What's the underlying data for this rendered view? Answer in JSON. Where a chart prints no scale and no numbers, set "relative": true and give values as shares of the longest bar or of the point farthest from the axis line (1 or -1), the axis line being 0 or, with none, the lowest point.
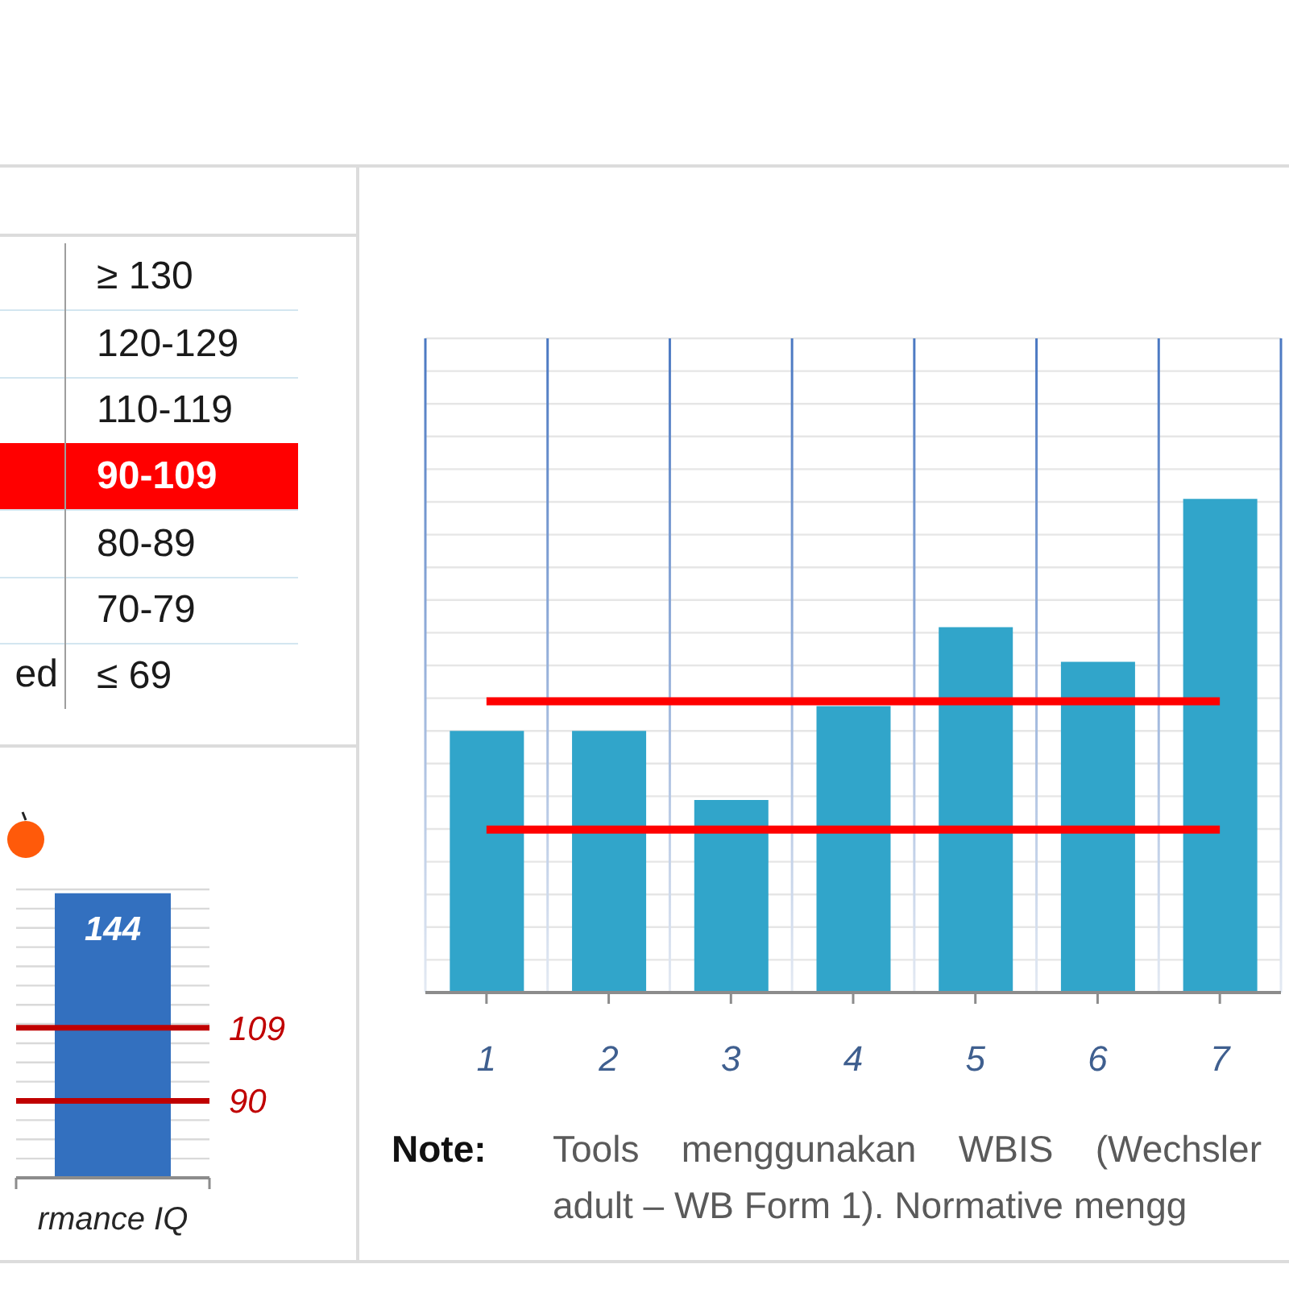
{
  "chart_data": [
    {
      "type": "other",
      "categories": [
        "≥ 130",
        "120-129",
        "110-119",
        "90-109",
        "80-89",
        "70-79",
        "≤ 69"
      ],
      "colors": [
        "#ffffff",
        "#ffffff",
        "#ffffff",
        "#ff0000",
        "#ffffff",
        "#ffffff",
        "#ffffff"
      ],
      "annotations": [
        "ed"
      ]
    },
    {
      "type": "bar",
      "categories": [
        "rmance IQ"
      ],
      "values": [
        144
      ],
      "color": "#3370bf",
      "ylim": [
        70,
        145
      ],
      "yticks": [
        {
          "value": 70,
          "label": null
        },
        {
          "value": 75,
          "label": null
        },
        {
          "value": 80,
          "label": null
        },
        {
          "value": 85,
          "label": null
        },
        {
          "value": 90,
          "label": null
        },
        {
          "value": 95,
          "label": null
        },
        {
          "value": 100,
          "label": null
        },
        {
          "value": 105,
          "label": null
        },
        {
          "value": 110,
          "label": null
        },
        {
          "value": 115,
          "label": null
        },
        {
          "value": 120,
          "label": null
        },
        {
          "value": 125,
          "label": null
        },
        {
          "value": 130,
          "label": null
        },
        {
          "value": 135,
          "label": null
        },
        {
          "value": 140,
          "label": null
        },
        {
          "value": 145,
          "label": null
        }
      ],
      "tick_labels": "x",
      "grid": "y",
      "data_labels": true,
      "ref_lines": [
        {
          "axis": "y",
          "value": 109,
          "label": "109",
          "color": "#c00000"
        },
        {
          "axis": "y",
          "value": 90,
          "label": "90",
          "color": "#c00000"
        }
      ]
    },
    {
      "type": "bar",
      "categories": [
        "1",
        "2",
        "3",
        "4",
        "5",
        "6",
        "7"
      ],
      "values": [
        0.53,
        0.53,
        0.39,
        0.58,
        0.74,
        0.67,
        1
      ],
      "relative": true,
      "color": "#31a5ca",
      "grid": true,
      "ref_lines": [
        {
          "axis": "y",
          "value": 0.59,
          "color": "#ff0000"
        },
        {
          "axis": "y",
          "value": 0.33,
          "color": "#ff0000"
        }
      ],
      "annotations": [
        "Note:",
        "Tools menggunakan WBIS (Wechsler",
        "adult – WB Form 1). Normative mengg"
      ]
    }
  ]
}
